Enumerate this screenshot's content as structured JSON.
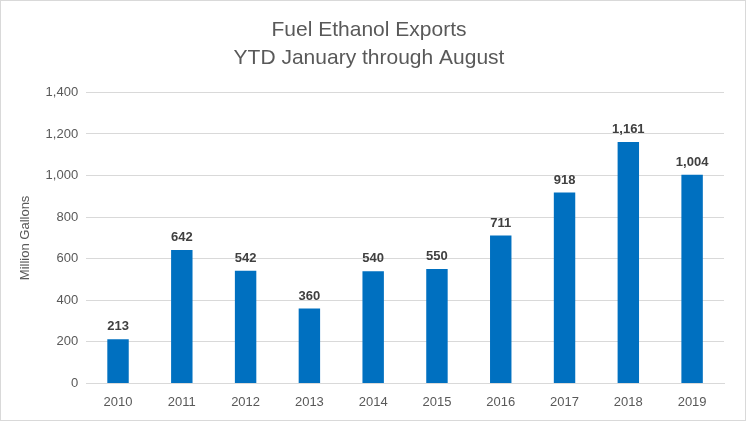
{
  "chart_data": {
    "type": "bar",
    "title": "Fuel Ethanol Exports",
    "subtitle": "YTD January through August",
    "y_label": "Million Gallons",
    "categories": [
      "2010",
      "2011",
      "2012",
      "2013",
      "2014",
      "2015",
      "2016",
      "2017",
      "2018",
      "2019"
    ],
    "values": [
      213,
      642,
      542,
      360,
      540,
      550,
      711,
      918,
      1161,
      1004
    ],
    "value_labels": [
      "213",
      "642",
      "542",
      "360",
      "540",
      "550",
      "711",
      "918",
      "1,161",
      "1,004"
    ],
    "color": "#0070c0",
    "ylim": [
      0,
      1400
    ],
    "yticks": [
      0,
      200,
      400,
      600,
      800,
      {
        "value": 1000,
        "label": "1,000"
      },
      {
        "value": 1200,
        "label": "1,200"
      },
      {
        "value": 1400,
        "label": "1,400"
      }
    ],
    "grid": true,
    "data_labels": true
  }
}
